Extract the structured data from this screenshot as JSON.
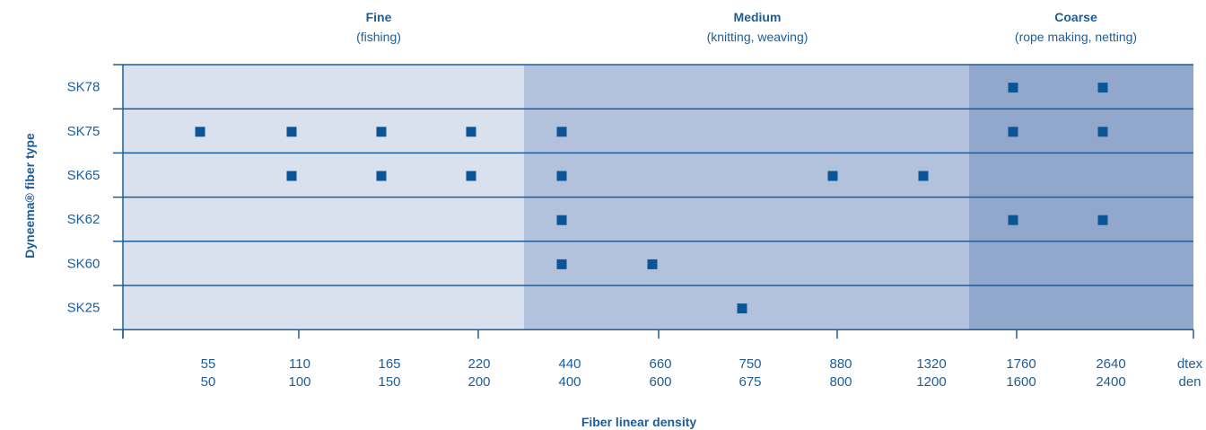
{
  "colors": {
    "fine_band": "#d9e0ee",
    "medium_band": "#b2c2dc",
    "coarse_band": "#91a8cc",
    "line": "#1c5d9a",
    "marker": "#0b5597",
    "text": "#1c5d9a"
  },
  "chart_data": {
    "type": "scatter",
    "title": "",
    "xlabel": "Fiber linear density",
    "ylabel": "Dyneema® fiber type",
    "categories_y": [
      "SK78",
      "SK75",
      "SK65",
      "SK62",
      "SK60",
      "SK25"
    ],
    "x_ticks": [
      {
        "dtex": "55",
        "den": "50"
      },
      {
        "dtex": "110",
        "den": "100"
      },
      {
        "dtex": "165",
        "den": "150"
      },
      {
        "dtex": "220",
        "den": "200"
      },
      {
        "dtex": "440",
        "den": "400"
      },
      {
        "dtex": "660",
        "den": "600"
      },
      {
        "dtex": "750",
        "den": "675"
      },
      {
        "dtex": "880",
        "den": "800"
      },
      {
        "dtex": "1320",
        "den": "1200"
      },
      {
        "dtex": "1760",
        "den": "1600"
      },
      {
        "dtex": "2640",
        "den": "2400"
      }
    ],
    "unit_labels": {
      "dtex": "dtex",
      "den": "den"
    },
    "ranges": [
      {
        "title": "Fine",
        "subtitle": "(fishing)",
        "from": "55",
        "to": "220"
      },
      {
        "title": "Medium",
        "subtitle": "(knitting, weaving)",
        "from": "440",
        "to": "1320"
      },
      {
        "title": "Coarse",
        "subtitle": "(rope making, netting)",
        "from": "1760",
        "to": "2640"
      }
    ],
    "points": [
      {
        "fiber": "SK78",
        "dtex": [
          "1760",
          "2640"
        ]
      },
      {
        "fiber": "SK75",
        "dtex": [
          "55",
          "110",
          "165",
          "220",
          "440",
          "1760",
          "2640"
        ]
      },
      {
        "fiber": "SK65",
        "dtex": [
          "110",
          "165",
          "220",
          "440",
          "880",
          "1320"
        ]
      },
      {
        "fiber": "SK62",
        "dtex": [
          "440",
          "1760",
          "2640"
        ]
      },
      {
        "fiber": "SK60",
        "dtex": [
          "440",
          "660"
        ]
      },
      {
        "fiber": "SK25",
        "dtex": [
          "750"
        ]
      }
    ]
  }
}
